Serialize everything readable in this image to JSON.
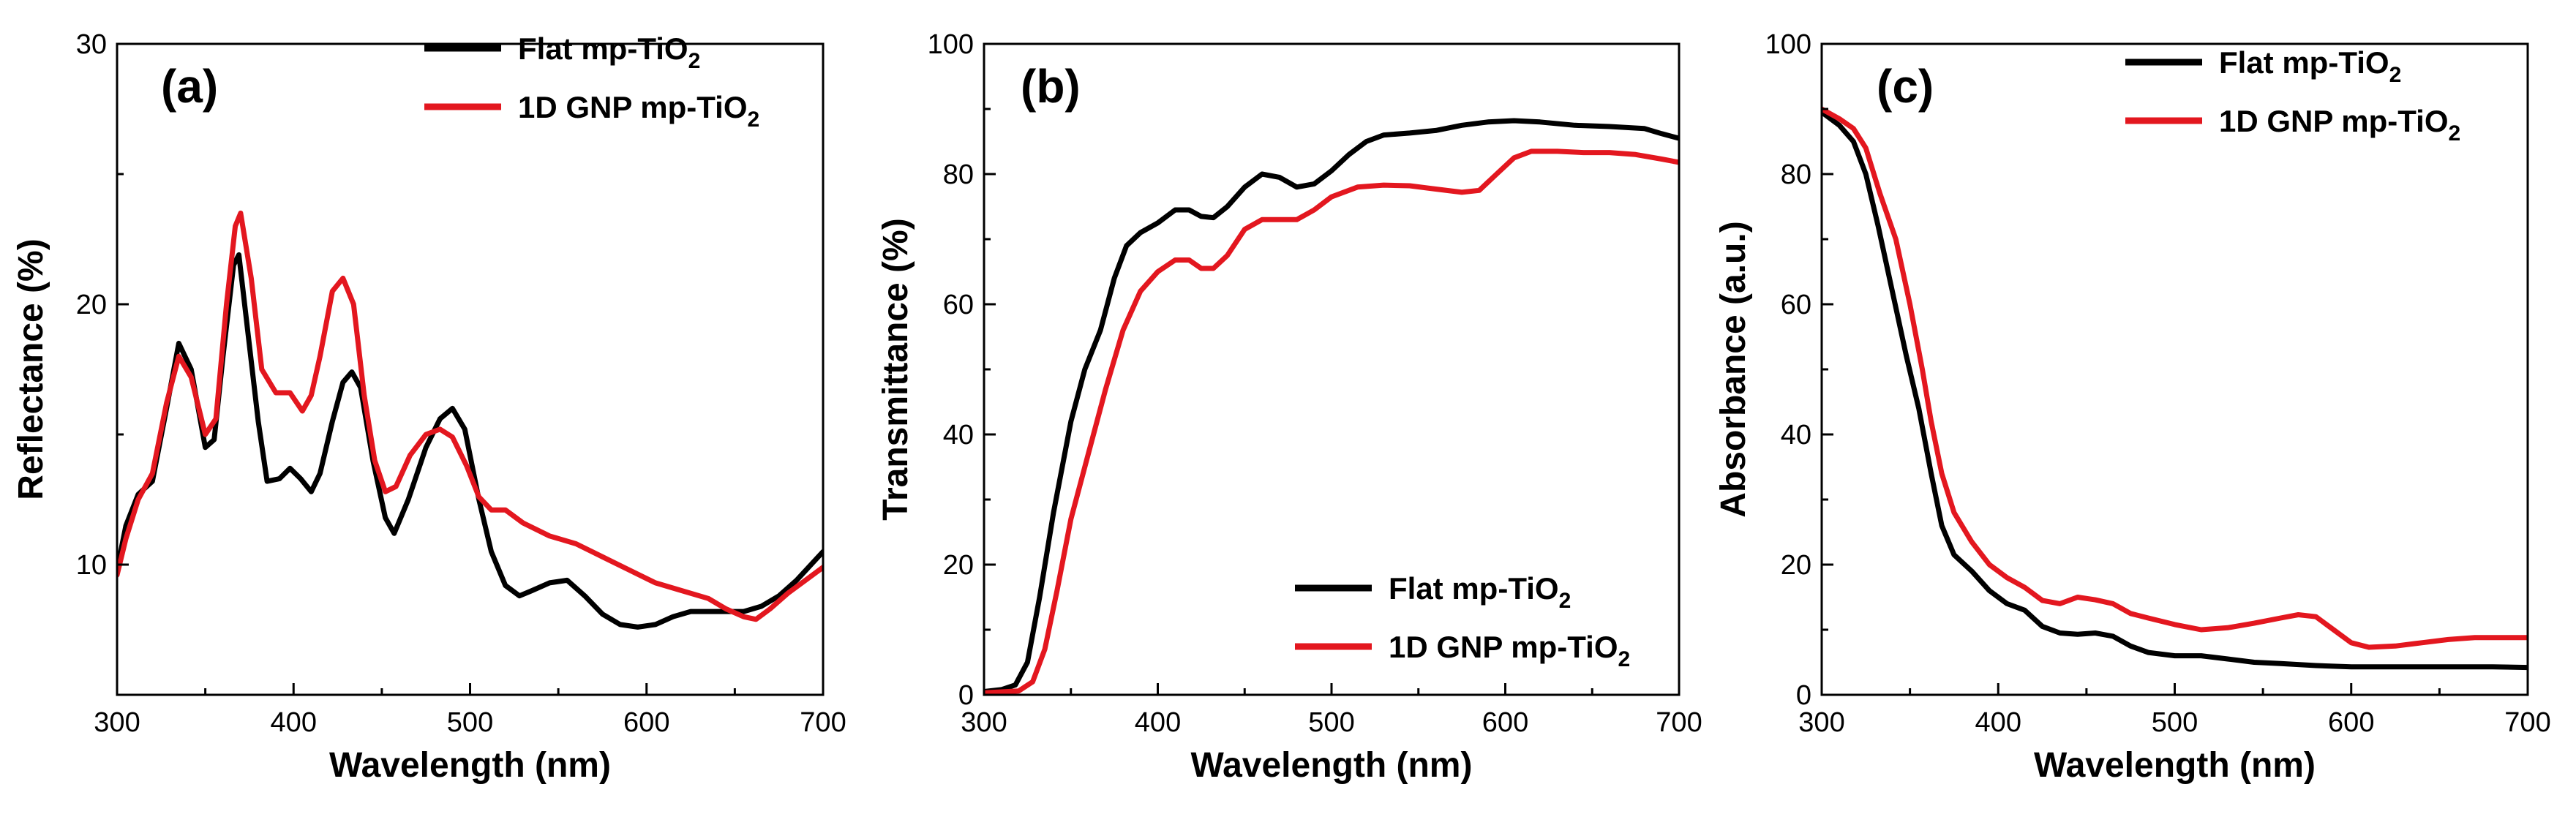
{
  "chart_data": [
    {
      "type": "line",
      "panel_label": "(a)",
      "xlabel": "Wavelength (nm)",
      "ylabel": "Reflectance (%)",
      "xlim": [
        300,
        700
      ],
      "ylim": [
        5,
        30
      ],
      "xticks": [
        300,
        400,
        500,
        600,
        700
      ],
      "yticks": [
        10,
        20,
        30
      ],
      "legend_position": "top-right",
      "series": [
        {
          "name": "Flat mp-TiO",
          "subscript": "2",
          "color": "#000000",
          "points": [
            [
              300,
              9.8
            ],
            [
              305,
              11.5
            ],
            [
              312,
              12.7
            ],
            [
              320,
              13.2
            ],
            [
              328,
              16.0
            ],
            [
              335,
              18.5
            ],
            [
              342,
              17.5
            ],
            [
              350,
              14.5
            ],
            [
              355,
              14.8
            ],
            [
              360,
              18.0
            ],
            [
              366,
              21.5
            ],
            [
              369,
              21.9
            ],
            [
              374,
              19.0
            ],
            [
              380,
              15.5
            ],
            [
              385,
              13.2
            ],
            [
              392,
              13.3
            ],
            [
              398,
              13.7
            ],
            [
              404,
              13.3
            ],
            [
              410,
              12.8
            ],
            [
              415,
              13.5
            ],
            [
              422,
              15.5
            ],
            [
              428,
              17.0
            ],
            [
              433,
              17.4
            ],
            [
              438,
              16.8
            ],
            [
              445,
              14.0
            ],
            [
              452,
              11.8
            ],
            [
              457,
              11.2
            ],
            [
              465,
              12.5
            ],
            [
              475,
              14.5
            ],
            [
              483,
              15.6
            ],
            [
              490,
              16.0
            ],
            [
              497,
              15.2
            ],
            [
              505,
              12.5
            ],
            [
              512,
              10.5
            ],
            [
              520,
              9.2
            ],
            [
              528,
              8.8
            ],
            [
              535,
              9.0
            ],
            [
              545,
              9.3
            ],
            [
              555,
              9.4
            ],
            [
              565,
              8.8
            ],
            [
              575,
              8.1
            ],
            [
              585,
              7.7
            ],
            [
              595,
              7.6
            ],
            [
              605,
              7.7
            ],
            [
              615,
              8.0
            ],
            [
              625,
              8.2
            ],
            [
              635,
              8.2
            ],
            [
              645,
              8.2
            ],
            [
              655,
              8.2
            ],
            [
              665,
              8.4
            ],
            [
              675,
              8.8
            ],
            [
              685,
              9.4
            ],
            [
              700,
              10.5
            ]
          ]
        },
        {
          "name": "1D GNP mp-TiO",
          "subscript": "2",
          "color": "#e3171f",
          "points": [
            [
              300,
              9.6
            ],
            [
              305,
              11.0
            ],
            [
              312,
              12.5
            ],
            [
              320,
              13.5
            ],
            [
              328,
              16.2
            ],
            [
              335,
              18.0
            ],
            [
              342,
              17.2
            ],
            [
              350,
              15.0
            ],
            [
              356,
              15.6
            ],
            [
              362,
              20.0
            ],
            [
              367,
              23.0
            ],
            [
              370,
              23.5
            ],
            [
              376,
              21.0
            ],
            [
              382,
              17.5
            ],
            [
              390,
              16.6
            ],
            [
              398,
              16.6
            ],
            [
              405,
              15.9
            ],
            [
              410,
              16.5
            ],
            [
              415,
              18.0
            ],
            [
              422,
              20.5
            ],
            [
              428,
              21.0
            ],
            [
              434,
              20.0
            ],
            [
              440,
              16.5
            ],
            [
              446,
              14.0
            ],
            [
              452,
              12.8
            ],
            [
              458,
              13.0
            ],
            [
              466,
              14.2
            ],
            [
              475,
              15.0
            ],
            [
              483,
              15.2
            ],
            [
              490,
              14.9
            ],
            [
              498,
              13.8
            ],
            [
              505,
              12.6
            ],
            [
              512,
              12.1
            ],
            [
              520,
              12.1
            ],
            [
              530,
              11.6
            ],
            [
              545,
              11.1
            ],
            [
              560,
              10.8
            ],
            [
              575,
              10.3
            ],
            [
              590,
              9.8
            ],
            [
              605,
              9.3
            ],
            [
              620,
              9.0
            ],
            [
              635,
              8.7
            ],
            [
              645,
              8.3
            ],
            [
              655,
              8.0
            ],
            [
              662,
              7.9
            ],
            [
              670,
              8.3
            ],
            [
              680,
              8.9
            ],
            [
              690,
              9.4
            ],
            [
              700,
              9.9
            ]
          ]
        }
      ]
    },
    {
      "type": "line",
      "panel_label": "(b)",
      "xlabel": "Wavelength (nm)",
      "ylabel": "Transmittance (%)",
      "xlim": [
        300,
        700
      ],
      "ylim": [
        0,
        100
      ],
      "xticks": [
        300,
        400,
        500,
        600,
        700
      ],
      "yticks": [
        0,
        20,
        40,
        60,
        80,
        100
      ],
      "legend_position": "bottom-right",
      "series": [
        {
          "name": "Flat mp-TiO",
          "subscript": "2",
          "color": "#000000",
          "points": [
            [
              300,
              0.5
            ],
            [
              310,
              0.8
            ],
            [
              318,
              1.5
            ],
            [
              325,
              5
            ],
            [
              332,
              15
            ],
            [
              340,
              28
            ],
            [
              350,
              42
            ],
            [
              358,
              50
            ],
            [
              367,
              56
            ],
            [
              375,
              64
            ],
            [
              382,
              69
            ],
            [
              390,
              71
            ],
            [
              400,
              72.5
            ],
            [
              410,
              74.5
            ],
            [
              418,
              74.5
            ],
            [
              425,
              73.5
            ],
            [
              432,
              73.3
            ],
            [
              440,
              75
            ],
            [
              450,
              78
            ],
            [
              460,
              80
            ],
            [
              470,
              79.5
            ],
            [
              480,
              78
            ],
            [
              490,
              78.5
            ],
            [
              500,
              80.5
            ],
            [
              510,
              83
            ],
            [
              520,
              85
            ],
            [
              530,
              86
            ],
            [
              545,
              86.3
            ],
            [
              560,
              86.7
            ],
            [
              575,
              87.5
            ],
            [
              590,
              88
            ],
            [
              605,
              88.2
            ],
            [
              620,
              88
            ],
            [
              640,
              87.5
            ],
            [
              660,
              87.3
            ],
            [
              680,
              87
            ],
            [
              690,
              86.2
            ],
            [
              700,
              85.5
            ]
          ]
        },
        {
          "name": "1D GNP mp-TiO",
          "subscript": "2",
          "color": "#e3171f",
          "points": [
            [
              300,
              0.3
            ],
            [
              320,
              0.6
            ],
            [
              328,
              2
            ],
            [
              335,
              7
            ],
            [
              342,
              16
            ],
            [
              350,
              27
            ],
            [
              360,
              37
            ],
            [
              370,
              47
            ],
            [
              380,
              56
            ],
            [
              390,
              62
            ],
            [
              400,
              65
            ],
            [
              410,
              66.8
            ],
            [
              418,
              66.8
            ],
            [
              425,
              65.5
            ],
            [
              432,
              65.5
            ],
            [
              440,
              67.5
            ],
            [
              450,
              71.5
            ],
            [
              460,
              73
            ],
            [
              470,
              73
            ],
            [
              480,
              73
            ],
            [
              490,
              74.5
            ],
            [
              500,
              76.5
            ],
            [
              515,
              78
            ],
            [
              530,
              78.3
            ],
            [
              545,
              78.2
            ],
            [
              560,
              77.7
            ],
            [
              575,
              77.2
            ],
            [
              585,
              77.5
            ],
            [
              595,
              80
            ],
            [
              605,
              82.5
            ],
            [
              615,
              83.5
            ],
            [
              630,
              83.5
            ],
            [
              645,
              83.3
            ],
            [
              660,
              83.3
            ],
            [
              675,
              83
            ],
            [
              690,
              82.3
            ],
            [
              700,
              81.8
            ]
          ]
        }
      ]
    },
    {
      "type": "line",
      "panel_label": "(c)",
      "xlabel": "Wavelength (nm)",
      "ylabel": "Absorbance (a.u.)",
      "xlim": [
        300,
        700
      ],
      "ylim": [
        0,
        100
      ],
      "xticks": [
        300,
        400,
        500,
        600,
        700
      ],
      "yticks": [
        0,
        20,
        40,
        60,
        80,
        100
      ],
      "legend_position": "top-right",
      "series": [
        {
          "name": "Flat mp-TiO",
          "subscript": "2",
          "color": "#000000",
          "points": [
            [
              300,
              89.5
            ],
            [
              310,
              87.5
            ],
            [
              318,
              85
            ],
            [
              325,
              80
            ],
            [
              332,
              72
            ],
            [
              340,
              62
            ],
            [
              348,
              52
            ],
            [
              355,
              44
            ],
            [
              362,
              34
            ],
            [
              368,
              26
            ],
            [
              375,
              21.5
            ],
            [
              385,
              19
            ],
            [
              395,
              16
            ],
            [
              405,
              14
            ],
            [
              415,
              13
            ],
            [
              425,
              10.5
            ],
            [
              435,
              9.5
            ],
            [
              445,
              9.3
            ],
            [
              455,
              9.5
            ],
            [
              465,
              9
            ],
            [
              475,
              7.5
            ],
            [
              485,
              6.5
            ],
            [
              500,
              6
            ],
            [
              515,
              6
            ],
            [
              530,
              5.5
            ],
            [
              545,
              5
            ],
            [
              560,
              4.8
            ],
            [
              580,
              4.5
            ],
            [
              600,
              4.3
            ],
            [
              620,
              4.3
            ],
            [
              640,
              4.3
            ],
            [
              660,
              4.3
            ],
            [
              680,
              4.3
            ],
            [
              700,
              4.2
            ]
          ]
        },
        {
          "name": "1D GNP mp-TiO",
          "subscript": "2",
          "color": "#e3171f",
          "points": [
            [
              300,
              90
            ],
            [
              310,
              88.5
            ],
            [
              318,
              87
            ],
            [
              325,
              84
            ],
            [
              333,
              77
            ],
            [
              342,
              70
            ],
            [
              350,
              60
            ],
            [
              357,
              50
            ],
            [
              362,
              42
            ],
            [
              368,
              34
            ],
            [
              375,
              28
            ],
            [
              385,
              23.5
            ],
            [
              395,
              20
            ],
            [
              405,
              18
            ],
            [
              415,
              16.5
            ],
            [
              425,
              14.5
            ],
            [
              435,
              14
            ],
            [
              445,
              15
            ],
            [
              455,
              14.6
            ],
            [
              465,
              14
            ],
            [
              475,
              12.5
            ],
            [
              485,
              11.8
            ],
            [
              500,
              10.8
            ],
            [
              515,
              10
            ],
            [
              530,
              10.3
            ],
            [
              545,
              11
            ],
            [
              560,
              11.8
            ],
            [
              570,
              12.3
            ],
            [
              580,
              12
            ],
            [
              590,
              10
            ],
            [
              600,
              8
            ],
            [
              610,
              7.3
            ],
            [
              625,
              7.5
            ],
            [
              640,
              8
            ],
            [
              655,
              8.5
            ],
            [
              670,
              8.8
            ],
            [
              685,
              8.8
            ],
            [
              700,
              8.8
            ]
          ]
        }
      ]
    }
  ]
}
